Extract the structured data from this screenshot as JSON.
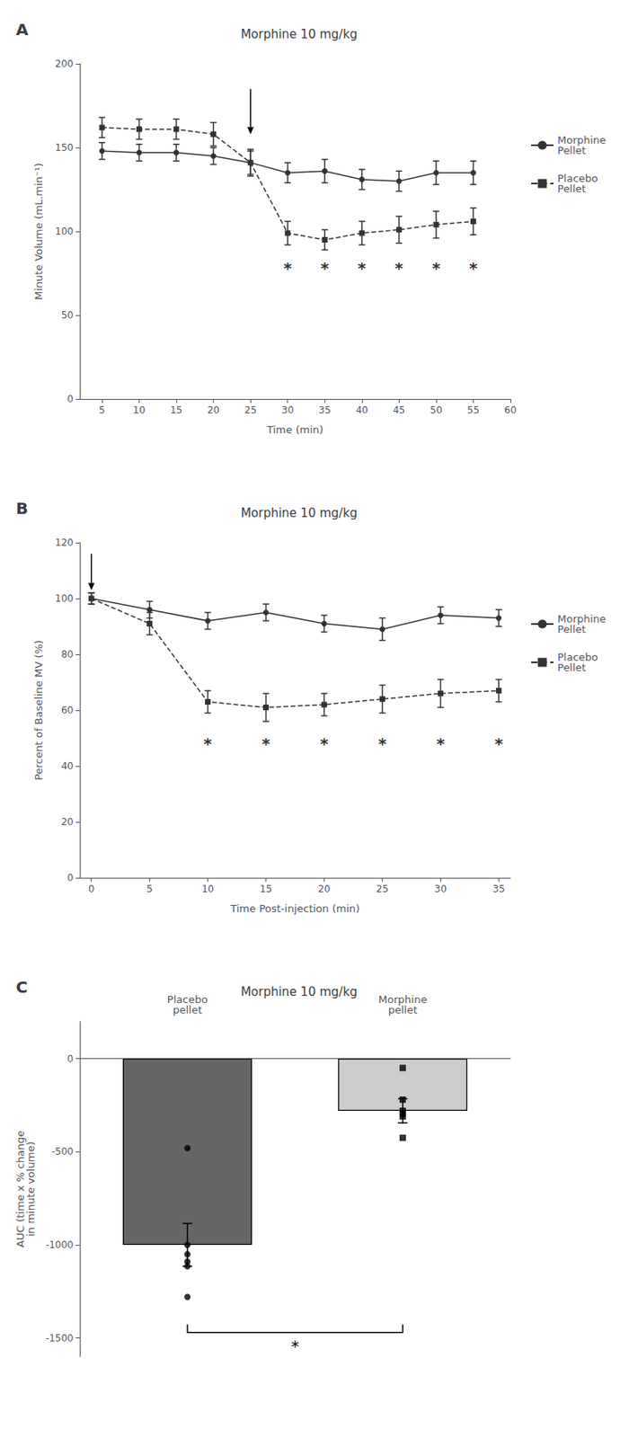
{
  "chart_data": [
    {
      "type": "line",
      "panel": "A",
      "title": "Morphine 10 mg/kg",
      "xlabel": "Time (min)",
      "ylabel": "Minute Volume (mL.min⁻¹)",
      "xlim": [
        2,
        60
      ],
      "ylim": [
        0,
        200
      ],
      "xticks": [
        5,
        10,
        15,
        20,
        25,
        30,
        35,
        40,
        45,
        50,
        55,
        60
      ],
      "yticks": [
        0,
        50,
        100,
        150,
        200
      ],
      "grid": false,
      "legend": "right",
      "series": [
        {
          "name": "Morphine\nPellet",
          "color": "#333333",
          "marker": "circle",
          "line_style": "solid",
          "x": [
            5,
            10,
            15,
            20,
            25,
            30,
            35,
            40,
            45,
            50,
            55
          ],
          "values": [
            148,
            147,
            147,
            145,
            141,
            135,
            136,
            131,
            130,
            135,
            135
          ],
          "errors": [
            5,
            5,
            5,
            5,
            7,
            6,
            7,
            6,
            6,
            7,
            7
          ]
        },
        {
          "name": "Placebo\nPellet",
          "color": "#333333",
          "marker": "square",
          "line_style": "dashed",
          "x": [
            5,
            10,
            15,
            20,
            25,
            30,
            35,
            40,
            45,
            50,
            55
          ],
          "values": [
            162,
            161,
            161,
            158,
            141,
            99,
            95,
            99,
            101,
            104,
            106
          ],
          "errors": [
            6,
            6,
            6,
            7,
            8,
            7,
            6,
            7,
            8,
            8,
            8
          ]
        }
      ],
      "annotations": [
        {
          "text": "*",
          "x": 30,
          "y": 78
        },
        {
          "text": "*",
          "x": 35,
          "y": 78
        },
        {
          "text": "*",
          "x": 40,
          "y": 78
        },
        {
          "text": "*",
          "x": 45,
          "y": 78
        },
        {
          "text": "*",
          "x": 50,
          "y": 78
        },
        {
          "text": "*",
          "x": 55,
          "y": 78
        }
      ],
      "arrow": {
        "x": 25,
        "y_start": 185,
        "y_end": 158
      }
    },
    {
      "type": "line",
      "panel": "B",
      "title": "Morphine 10 mg/kg",
      "xlabel": "Time Post-injection (min)",
      "ylabel": "Percent of Baseline MV (%)",
      "xlim": [
        -1,
        36
      ],
      "ylim": [
        0,
        120
      ],
      "xticks": [
        0,
        5,
        10,
        15,
        20,
        25,
        30,
        35
      ],
      "yticks": [
        0,
        20,
        40,
        60,
        80,
        100,
        120
      ],
      "grid": false,
      "legend": "right",
      "series": [
        {
          "name": "Morphine\nPellet",
          "color": "#333333",
          "marker": "circle",
          "line_style": "solid",
          "x": [
            0,
            5,
            10,
            15,
            20,
            25,
            30,
            35
          ],
          "values": [
            100,
            96,
            92,
            95,
            91,
            89,
            94,
            93
          ],
          "errors": [
            2,
            3,
            3,
            3,
            3,
            4,
            3,
            3
          ]
        },
        {
          "name": "Placebo\nPellet",
          "color": "#333333",
          "marker": "square",
          "line_style": "dashed",
          "x": [
            0,
            5,
            10,
            15,
            20,
            25,
            30,
            35
          ],
          "values": [
            100,
            91,
            63,
            61,
            62,
            64,
            66,
            67
          ],
          "errors": [
            2,
            4,
            4,
            5,
            4,
            5,
            5,
            4
          ]
        }
      ],
      "annotations": [
        {
          "text": "*",
          "x": 10,
          "y": 48
        },
        {
          "text": "*",
          "x": 15,
          "y": 48
        },
        {
          "text": "*",
          "x": 20,
          "y": 48
        },
        {
          "text": "*",
          "x": 25,
          "y": 48
        },
        {
          "text": "*",
          "x": 30,
          "y": 48
        },
        {
          "text": "*",
          "x": 35,
          "y": 48
        }
      ],
      "arrow": {
        "x": 0,
        "y_start": 116,
        "y_end": 103
      }
    },
    {
      "type": "bar",
      "panel": "C",
      "title": "Morphine 10 mg/kg",
      "ylabel": "AUC (time x % change\nin minute volume)",
      "categories": [
        "Placebo\npellet",
        "Morphine\npellet"
      ],
      "values": [
        -1000,
        -280
      ],
      "errors": [
        115,
        65
      ],
      "colors": [
        "#666666",
        "#cccccc"
      ],
      "points": [
        [
          -480,
          -1000,
          -1050,
          -1090,
          -1115,
          -1280
        ],
        [
          -50,
          -220,
          -280,
          -295,
          -310,
          -425
        ]
      ],
      "point_markers": [
        "circle",
        "square"
      ],
      "ylim": [
        -1600,
        200
      ],
      "yticks": [
        -1500,
        -1000,
        -500,
        0
      ],
      "grid": false,
      "bracket": {
        "y": -1470,
        "text": "*",
        "text_y": -1500
      }
    }
  ]
}
